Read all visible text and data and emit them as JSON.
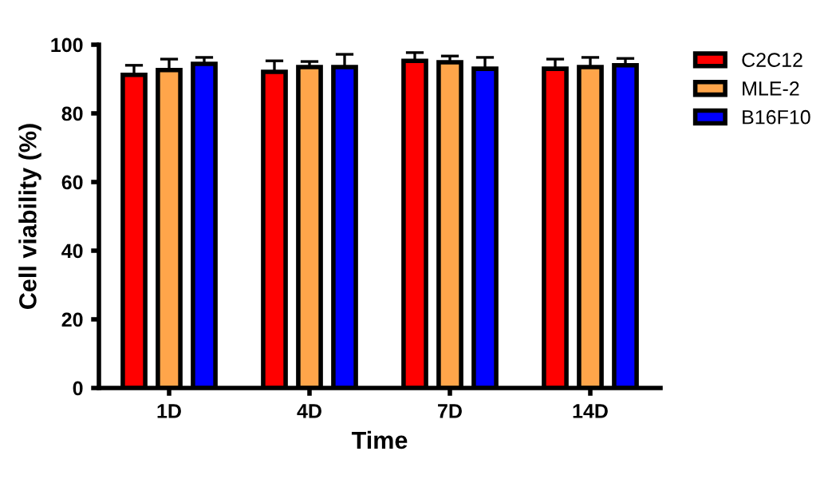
{
  "chart_data": {
    "type": "bar",
    "xlabel": "Time",
    "ylabel": "Cell viability (%)",
    "categories": [
      "1D",
      "4D",
      "7D",
      "14D"
    ],
    "series": [
      {
        "name": "C2C12",
        "color": "#ff0000",
        "values": [
          91.2,
          92.1,
          95.3,
          93.0
        ],
        "errors": [
          [
            91.2,
            94.0
          ],
          [
            92.1,
            95.3
          ],
          [
            95.3,
            97.7
          ],
          [
            93.0,
            95.8
          ]
        ]
      },
      {
        "name": "MLE-2",
        "color": "#ffa54a",
        "values": [
          92.6,
          93.5,
          94.9,
          93.5
        ],
        "errors": [
          [
            92.6,
            95.8
          ],
          [
            93.5,
            95.1
          ],
          [
            94.9,
            96.7
          ],
          [
            93.5,
            96.3
          ]
        ]
      },
      {
        "name": "B16F10",
        "color": "#0000ff",
        "values": [
          94.4,
          93.5,
          93.0,
          94.0
        ],
        "errors": [
          [
            94.4,
            96.3
          ],
          [
            93.5,
            97.2
          ],
          [
            93.0,
            96.3
          ],
          [
            94.0,
            96.0
          ]
        ]
      }
    ],
    "ylim": [
      0,
      100
    ],
    "yticks": [
      0,
      20,
      40,
      60,
      80,
      100
    ],
    "grid": false,
    "legend": "top right"
  }
}
